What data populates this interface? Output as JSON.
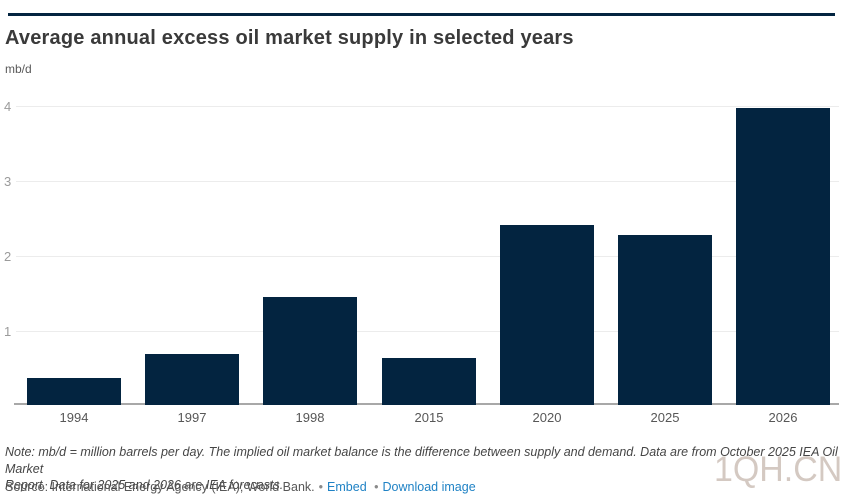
{
  "header": {
    "title": "Average annual excess oil market supply in selected years",
    "unit_label": "mb/d"
  },
  "chart_data": {
    "type": "bar",
    "categories": [
      "1994",
      "1997",
      "1998",
      "2015",
      "2020",
      "2025",
      "2026"
    ],
    "values": [
      0.36,
      0.68,
      1.44,
      0.63,
      2.4,
      2.27,
      3.96
    ],
    "title": "Average annual excess oil market supply in selected years",
    "xlabel": "",
    "ylabel": "mb/d",
    "ylim": [
      0,
      4.33
    ],
    "yticks": [
      1,
      2,
      3,
      4
    ],
    "grid": true,
    "legend": "none",
    "bar_color": "#032440",
    "gridline_color": "#ececec",
    "axis_line_color": "#a8a8a8"
  },
  "footer": {
    "note_line1": "Note: mb/d = million barrels per day. The implied oil market balance is the difference between supply and demand. Data are from October 2025 IEA Oil Market",
    "note_line2": "Report. Data for 2025 and 2026 are IEA forecasts.",
    "source_text": "Source: International Energy Agency (IEA); World Bank.",
    "separator": "•",
    "links": [
      {
        "label": "Embed"
      },
      {
        "label": "Download image"
      }
    ],
    "link_color": "#1f82c5"
  },
  "watermark": {
    "text": "1QH.CN"
  },
  "accent_color": "#032440"
}
